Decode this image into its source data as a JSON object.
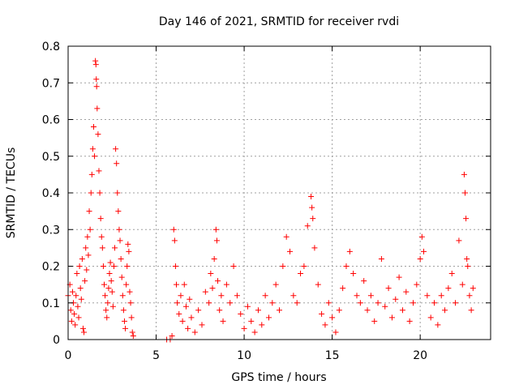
{
  "chart_data": {
    "type": "scatter",
    "title": "Day 146 of 2021, SRMTID for receiver rvdi",
    "xlabel": "GPS time / hours",
    "ylabel": "SRMTID / TECUs",
    "xlim": [
      0,
      24
    ],
    "ylim": [
      0,
      0.8
    ],
    "xticks": [
      0,
      5,
      10,
      15,
      20
    ],
    "xtick_labels": [
      "0",
      "5",
      "10",
      "15",
      "20"
    ],
    "yticks": [
      0,
      0.1,
      0.2,
      0.3,
      0.4,
      0.5,
      0.6,
      0.7,
      0.8
    ],
    "ytick_labels": [
      "0",
      "0.1",
      "0.2",
      "0.3",
      "0.4",
      "0.5",
      "0.6",
      "0.7",
      "0.8"
    ],
    "grid": true,
    "marker": "+",
    "color": "#ff0000",
    "series": [
      {
        "name": "SRMTID",
        "points": [
          [
            0.0,
            0.12
          ],
          [
            0.1,
            0.15
          ],
          [
            0.15,
            0.08
          ],
          [
            0.2,
            0.05
          ],
          [
            0.25,
            0.13
          ],
          [
            0.3,
            0.1
          ],
          [
            0.35,
            0.07
          ],
          [
            0.4,
            0.04
          ],
          [
            0.45,
            0.12
          ],
          [
            0.5,
            0.18
          ],
          [
            0.55,
            0.09
          ],
          [
            0.6,
            0.06
          ],
          [
            0.65,
            0.2
          ],
          [
            0.7,
            0.14
          ],
          [
            0.75,
            0.11
          ],
          [
            0.8,
            0.22
          ],
          [
            0.85,
            0.03
          ],
          [
            0.9,
            0.02
          ],
          [
            0.95,
            0.16
          ],
          [
            1.0,
            0.25
          ],
          [
            1.05,
            0.19
          ],
          [
            1.1,
            0.28
          ],
          [
            1.15,
            0.23
          ],
          [
            1.2,
            0.35
          ],
          [
            1.25,
            0.3
          ],
          [
            1.3,
            0.4
          ],
          [
            1.35,
            0.45
          ],
          [
            1.4,
            0.52
          ],
          [
            1.45,
            0.58
          ],
          [
            1.5,
            0.5
          ],
          [
            1.55,
            0.76
          ],
          [
            1.58,
            0.75
          ],
          [
            1.6,
            0.71
          ],
          [
            1.62,
            0.69
          ],
          [
            1.65,
            0.63
          ],
          [
            1.7,
            0.56
          ],
          [
            1.75,
            0.46
          ],
          [
            1.8,
            0.4
          ],
          [
            1.85,
            0.33
          ],
          [
            1.9,
            0.28
          ],
          [
            1.95,
            0.25
          ],
          [
            2.0,
            0.2
          ],
          [
            2.05,
            0.15
          ],
          [
            2.1,
            0.12
          ],
          [
            2.15,
            0.08
          ],
          [
            2.2,
            0.06
          ],
          [
            2.25,
            0.1
          ],
          [
            2.3,
            0.14
          ],
          [
            2.35,
            0.18
          ],
          [
            2.4,
            0.21
          ],
          [
            2.45,
            0.16
          ],
          [
            2.5,
            0.13
          ],
          [
            2.55,
            0.09
          ],
          [
            2.6,
            0.2
          ],
          [
            2.65,
            0.25
          ],
          [
            2.7,
            0.52
          ],
          [
            2.75,
            0.48
          ],
          [
            2.8,
            0.4
          ],
          [
            2.85,
            0.35
          ],
          [
            2.9,
            0.3
          ],
          [
            2.95,
            0.27
          ],
          [
            3.0,
            0.22
          ],
          [
            3.05,
            0.17
          ],
          [
            3.1,
            0.12
          ],
          [
            3.15,
            0.08
          ],
          [
            3.2,
            0.05
          ],
          [
            3.25,
            0.03
          ],
          [
            3.3,
            0.15
          ],
          [
            3.35,
            0.2
          ],
          [
            3.4,
            0.26
          ],
          [
            3.45,
            0.24
          ],
          [
            3.5,
            0.13
          ],
          [
            3.55,
            0.1
          ],
          [
            3.6,
            0.06
          ],
          [
            3.65,
            0.02
          ],
          [
            3.7,
            0.01
          ],
          [
            5.6,
            0.0
          ],
          [
            5.8,
            0.0
          ],
          [
            5.9,
            0.01
          ],
          [
            6.0,
            0.3
          ],
          [
            6.05,
            0.27
          ],
          [
            6.1,
            0.2
          ],
          [
            6.15,
            0.15
          ],
          [
            6.2,
            0.1
          ],
          [
            6.3,
            0.07
          ],
          [
            6.4,
            0.12
          ],
          [
            6.5,
            0.05
          ],
          [
            6.6,
            0.15
          ],
          [
            6.7,
            0.09
          ],
          [
            6.8,
            0.03
          ],
          [
            6.9,
            0.11
          ],
          [
            7.0,
            0.06
          ],
          [
            7.2,
            0.02
          ],
          [
            7.4,
            0.08
          ],
          [
            7.6,
            0.04
          ],
          [
            7.8,
            0.13
          ],
          [
            8.0,
            0.1
          ],
          [
            8.1,
            0.18
          ],
          [
            8.2,
            0.14
          ],
          [
            8.3,
            0.22
          ],
          [
            8.4,
            0.3
          ],
          [
            8.45,
            0.27
          ],
          [
            8.5,
            0.16
          ],
          [
            8.6,
            0.08
          ],
          [
            8.7,
            0.12
          ],
          [
            8.8,
            0.05
          ],
          [
            9.0,
            0.15
          ],
          [
            9.2,
            0.1
          ],
          [
            9.4,
            0.2
          ],
          [
            9.6,
            0.12
          ],
          [
            9.8,
            0.07
          ],
          [
            10.0,
            0.03
          ],
          [
            10.2,
            0.09
          ],
          [
            10.4,
            0.05
          ],
          [
            10.6,
            0.02
          ],
          [
            10.8,
            0.08
          ],
          [
            11.0,
            0.04
          ],
          [
            11.2,
            0.12
          ],
          [
            11.4,
            0.06
          ],
          [
            11.6,
            0.1
          ],
          [
            11.8,
            0.15
          ],
          [
            12.0,
            0.08
          ],
          [
            12.2,
            0.2
          ],
          [
            12.4,
            0.28
          ],
          [
            12.6,
            0.24
          ],
          [
            12.8,
            0.12
          ],
          [
            13.0,
            0.1
          ],
          [
            13.2,
            0.18
          ],
          [
            13.4,
            0.2
          ],
          [
            13.6,
            0.31
          ],
          [
            13.8,
            0.39
          ],
          [
            13.85,
            0.36
          ],
          [
            13.9,
            0.33
          ],
          [
            14.0,
            0.25
          ],
          [
            14.2,
            0.15
          ],
          [
            14.4,
            0.07
          ],
          [
            14.6,
            0.04
          ],
          [
            14.8,
            0.1
          ],
          [
            15.0,
            0.06
          ],
          [
            15.2,
            0.02
          ],
          [
            15.4,
            0.08
          ],
          [
            15.6,
            0.14
          ],
          [
            15.8,
            0.2
          ],
          [
            16.0,
            0.24
          ],
          [
            16.2,
            0.18
          ],
          [
            16.4,
            0.12
          ],
          [
            16.6,
            0.1
          ],
          [
            16.8,
            0.16
          ],
          [
            17.0,
            0.08
          ],
          [
            17.2,
            0.12
          ],
          [
            17.4,
            0.05
          ],
          [
            17.6,
            0.1
          ],
          [
            17.8,
            0.22
          ],
          [
            18.0,
            0.09
          ],
          [
            18.2,
            0.14
          ],
          [
            18.4,
            0.06
          ],
          [
            18.6,
            0.11
          ],
          [
            18.8,
            0.17
          ],
          [
            19.0,
            0.08
          ],
          [
            19.2,
            0.13
          ],
          [
            19.4,
            0.05
          ],
          [
            19.6,
            0.1
          ],
          [
            19.8,
            0.15
          ],
          [
            20.0,
            0.22
          ],
          [
            20.1,
            0.28
          ],
          [
            20.2,
            0.24
          ],
          [
            20.4,
            0.12
          ],
          [
            20.6,
            0.06
          ],
          [
            20.8,
            0.1
          ],
          [
            21.0,
            0.04
          ],
          [
            21.2,
            0.12
          ],
          [
            21.4,
            0.08
          ],
          [
            21.6,
            0.14
          ],
          [
            21.8,
            0.18
          ],
          [
            22.0,
            0.1
          ],
          [
            22.2,
            0.27
          ],
          [
            22.4,
            0.15
          ],
          [
            22.5,
            0.45
          ],
          [
            22.55,
            0.4
          ],
          [
            22.6,
            0.33
          ],
          [
            22.65,
            0.22
          ],
          [
            22.7,
            0.2
          ],
          [
            22.8,
            0.12
          ],
          [
            22.9,
            0.08
          ],
          [
            23.0,
            0.14
          ]
        ]
      }
    ]
  }
}
